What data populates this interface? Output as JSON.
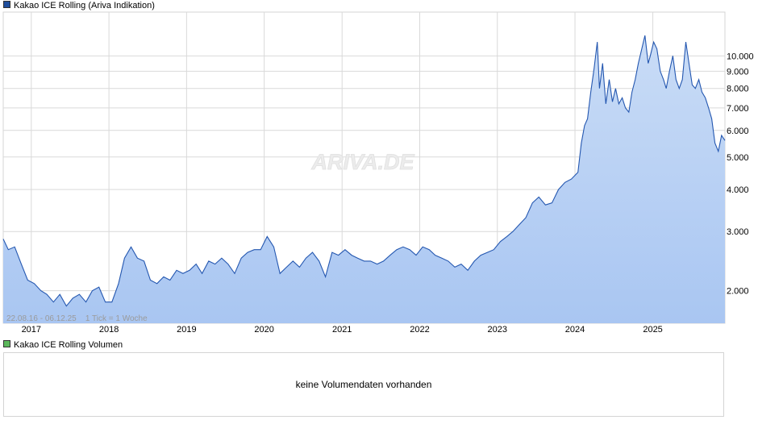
{
  "price_legend": {
    "label": "Kakao ICE Rolling (Ariva Indikation)",
    "color": "#1f4e9c"
  },
  "volume_legend": {
    "label": "Kakao ICE Rolling Volumen",
    "color": "#5cb85c"
  },
  "watermark": "ARIVA.DE",
  "range_note": "22.08.16 - 06.12.25    1 Tick = 1 Woche",
  "volume_message": "keine Volumendaten vorhanden",
  "colors": {
    "line": "#2457b0",
    "fill_top": "#c9dcf6",
    "fill_bottom": "#a9c6f2",
    "grid": "#d9d9d9"
  },
  "chart_data": {
    "type": "area",
    "title": "Kakao ICE Rolling (Ariva Indikation)",
    "xlabel": "",
    "ylabel": "",
    "yscale": "log",
    "ylim": [
      1600,
      13500
    ],
    "grid": true,
    "date_range": [
      "2016-08-22",
      "2025-12-06"
    ],
    "x_tick_labels": [
      "2017",
      "2018",
      "2019",
      "2020",
      "2021",
      "2022",
      "2023",
      "2024",
      "2025"
    ],
    "y_ticks": [
      2000,
      3000,
      4000,
      5000,
      6000,
      7000,
      8000,
      9000,
      10000
    ],
    "y_tick_labels": [
      "2.000",
      "3.000",
      "4.000",
      "5.000",
      "6.000",
      "7.000",
      "8.000",
      "9.000",
      "10.000"
    ],
    "series": [
      {
        "x": [
          "2016-08-22",
          "2016-09-15",
          "2016-10-15",
          "2016-11-15",
          "2016-12-15",
          "2017-01-15",
          "2017-02-15",
          "2017-03-15",
          "2017-04-15",
          "2017-05-15",
          "2017-06-15",
          "2017-07-15",
          "2017-08-15",
          "2017-09-15",
          "2017-10-15",
          "2017-11-15",
          "2017-12-15",
          "2018-01-15",
          "2018-02-15",
          "2018-03-15",
          "2018-04-15",
          "2018-05-15",
          "2018-06-15",
          "2018-07-15",
          "2018-08-15",
          "2018-09-15",
          "2018-10-15",
          "2018-11-15",
          "2018-12-15",
          "2019-01-15",
          "2019-02-15",
          "2019-03-15",
          "2019-04-15",
          "2019-05-15",
          "2019-06-15",
          "2019-07-15",
          "2019-08-15",
          "2019-09-15",
          "2019-10-15",
          "2019-11-15",
          "2019-12-15",
          "2020-01-15",
          "2020-02-15",
          "2020-03-15",
          "2020-04-15",
          "2020-05-15",
          "2020-06-15",
          "2020-07-15",
          "2020-08-15",
          "2020-09-15",
          "2020-10-15",
          "2020-11-15",
          "2020-12-15",
          "2021-01-15",
          "2021-02-15",
          "2021-03-15",
          "2021-04-15",
          "2021-05-15",
          "2021-06-15",
          "2021-07-15",
          "2021-08-15",
          "2021-09-15",
          "2021-10-15",
          "2021-11-15",
          "2021-12-15",
          "2022-01-15",
          "2022-02-15",
          "2022-03-15",
          "2022-04-15",
          "2022-05-15",
          "2022-06-15",
          "2022-07-15",
          "2022-08-15",
          "2022-09-15",
          "2022-10-15",
          "2022-11-15",
          "2022-12-15",
          "2023-01-15",
          "2023-02-15",
          "2023-03-15",
          "2023-04-15",
          "2023-05-15",
          "2023-06-15",
          "2023-07-15",
          "2023-08-15",
          "2023-09-15",
          "2023-10-15",
          "2023-11-15",
          "2023-12-15",
          "2024-01-15",
          "2024-01-31",
          "2024-02-15",
          "2024-02-29",
          "2024-03-15",
          "2024-03-31",
          "2024-04-15",
          "2024-04-25",
          "2024-05-10",
          "2024-05-25",
          "2024-06-10",
          "2024-06-25",
          "2024-07-10",
          "2024-07-25",
          "2024-08-10",
          "2024-08-25",
          "2024-09-10",
          "2024-09-25",
          "2024-10-10",
          "2024-10-25",
          "2024-11-10",
          "2024-11-25",
          "2024-12-10",
          "2024-12-20",
          "2025-01-05",
          "2025-01-20",
          "2025-02-05",
          "2025-02-20",
          "2025-03-05",
          "2025-03-20",
          "2025-04-05",
          "2025-04-20",
          "2025-05-05",
          "2025-05-20",
          "2025-06-05",
          "2025-06-20",
          "2025-07-05",
          "2025-07-20",
          "2025-08-05",
          "2025-08-20",
          "2025-09-05",
          "2025-09-20",
          "2025-10-05",
          "2025-10-20",
          "2025-11-05",
          "2025-11-20",
          "2025-12-06"
        ],
        "values": [
          2850,
          2650,
          2700,
          2400,
          2150,
          2100,
          2000,
          1950,
          1850,
          1950,
          1800,
          1900,
          1950,
          1850,
          2000,
          2050,
          1850,
          1850,
          2100,
          2500,
          2700,
          2500,
          2450,
          2150,
          2100,
          2200,
          2150,
          2300,
          2250,
          2300,
          2400,
          2250,
          2450,
          2400,
          2500,
          2400,
          2250,
          2500,
          2600,
          2650,
          2650,
          2900,
          2700,
          2250,
          2350,
          2450,
          2350,
          2500,
          2600,
          2450,
          2200,
          2600,
          2550,
          2650,
          2550,
          2500,
          2450,
          2450,
          2400,
          2450,
          2550,
          2650,
          2700,
          2650,
          2550,
          2700,
          2650,
          2550,
          2500,
          2450,
          2350,
          2400,
          2300,
          2450,
          2550,
          2600,
          2650,
          2800,
          2900,
          3000,
          3150,
          3300,
          3650,
          3800,
          3600,
          3650,
          4000,
          4200,
          4300,
          4500,
          5500,
          6200,
          6500,
          7800,
          9200,
          11000,
          8000,
          9500,
          7200,
          8500,
          7300,
          8000,
          7200,
          7500,
          7000,
          6800,
          7800,
          8500,
          9500,
          10500,
          11500,
          9500,
          10000,
          11000,
          10500,
          9000,
          8500,
          8000,
          9000,
          10000,
          8500,
          8000,
          8500,
          11000,
          9500,
          8200,
          8000,
          8500,
          7800,
          7500,
          7000,
          6500,
          5500,
          5200,
          5800,
          5600
        ]
      }
    ]
  }
}
